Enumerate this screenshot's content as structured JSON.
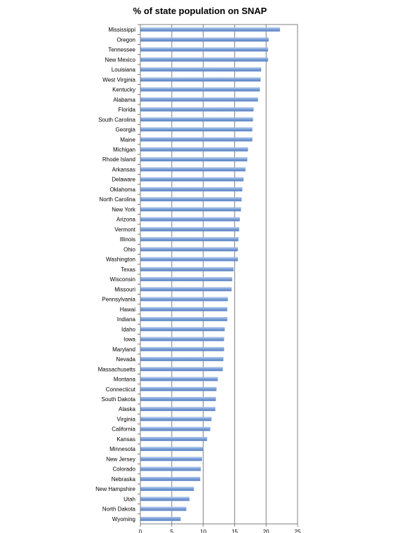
{
  "chart_data": {
    "type": "bar",
    "orientation": "horizontal",
    "title": "% of state population on SNAP",
    "xlabel": "",
    "ylabel": "",
    "xlim": [
      0,
      25
    ],
    "xticks": [
      0,
      5,
      10,
      15,
      20,
      25
    ],
    "grid": true,
    "legend": "none",
    "bar_color": "#7a9fd6",
    "categories": [
      "Mississippi",
      "Oregon",
      "Tennessee",
      "New Mexico",
      "Louisiana",
      "West Virginia",
      "Kentucky",
      "Alabama",
      "Florida",
      "South Carolina",
      "Georgia",
      "Maine",
      "Michigan",
      "Rhode Island",
      "Arkansas",
      "Delaware",
      "Oklahoma",
      "North Carolina",
      "New York",
      "Arizona",
      "Vermont",
      "Illinois",
      "Ohio",
      "Washington",
      "Texas",
      "Wisconsin",
      "Missouri",
      "Pennsylvania",
      "Hawai",
      "Indiana",
      "Idaho",
      "Iowa",
      "Maryland",
      "Nevada",
      "Massachusetts",
      "Montana",
      "Connecticut",
      "South Dakota",
      "Alaska",
      "Virginia",
      "California",
      "Kansas",
      "Minnesota",
      "New Jersey",
      "Colorado",
      "Nebraska",
      "New Hampshire",
      "Utah",
      "North Dakota",
      "Wyoming"
    ],
    "values": [
      22.2,
      20.4,
      20.3,
      20.3,
      19.2,
      19.1,
      19.0,
      18.7,
      18.0,
      17.9,
      17.8,
      17.8,
      17.1,
      17.0,
      16.7,
      16.4,
      16.2,
      16.1,
      16.0,
      15.8,
      15.7,
      15.6,
      15.5,
      15.5,
      14.8,
      14.6,
      14.5,
      13.9,
      13.8,
      13.8,
      13.4,
      13.3,
      13.3,
      13.2,
      13.1,
      12.3,
      12.1,
      12.0,
      11.9,
      11.3,
      11.1,
      10.6,
      10.0,
      9.8,
      9.6,
      9.5,
      8.5,
      7.8,
      7.3,
      6.4
    ]
  }
}
